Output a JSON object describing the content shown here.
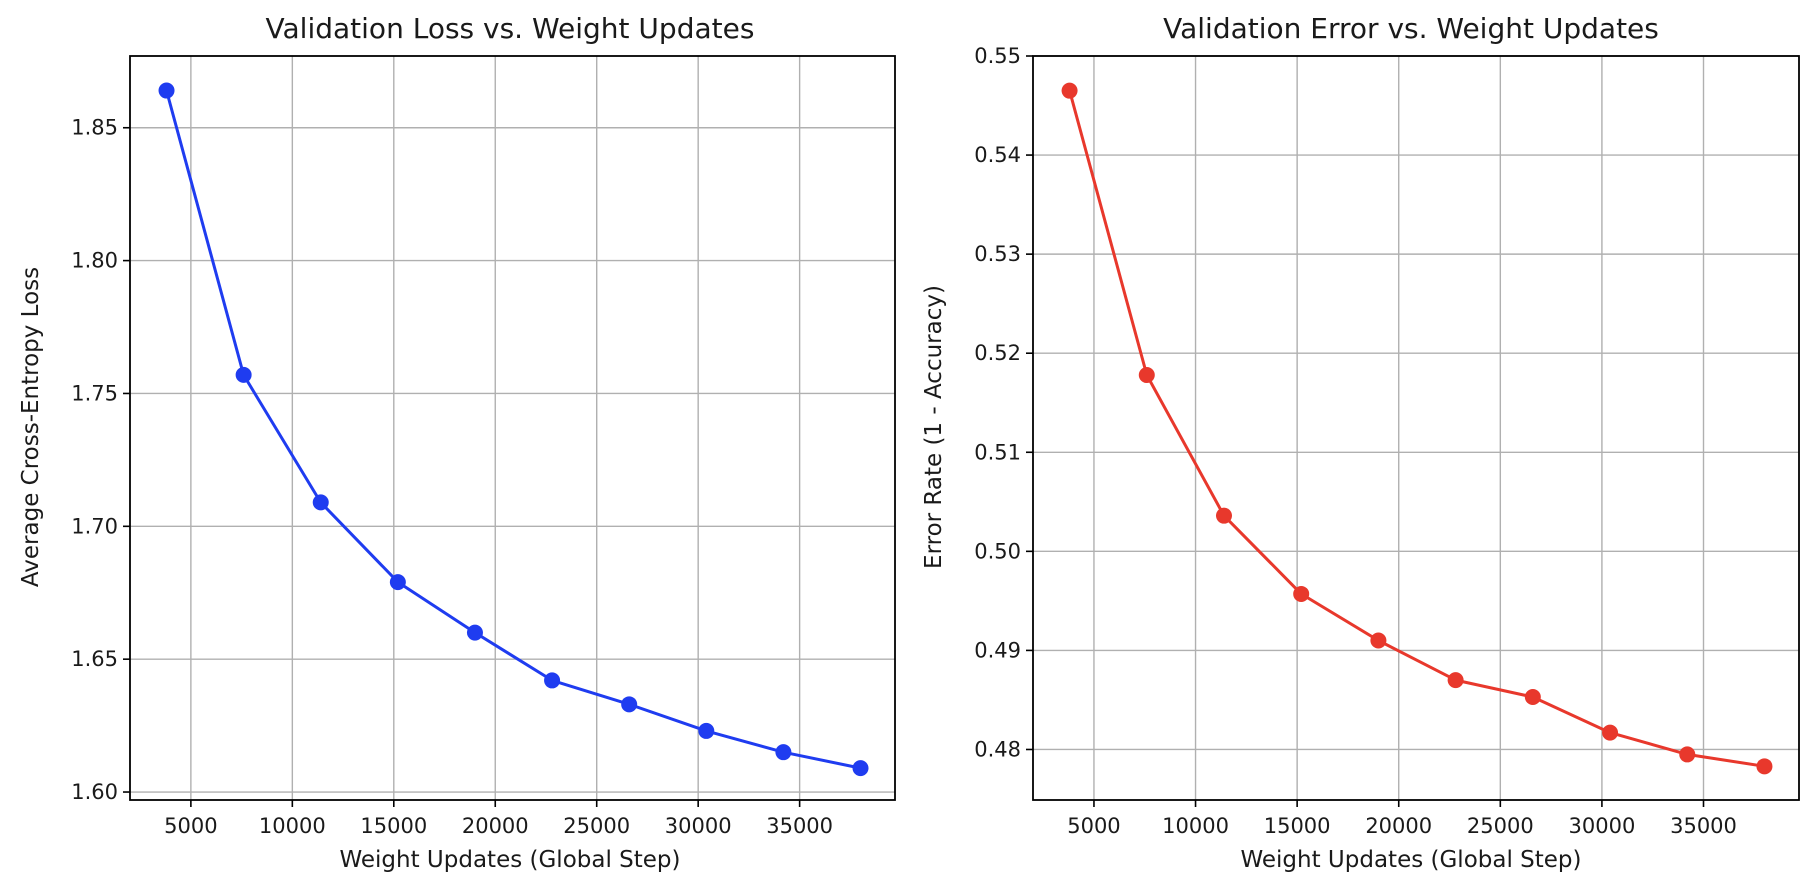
{
  "chart_data": [
    {
      "type": "line",
      "title": "Validation Loss vs. Weight Updates",
      "xlabel": "Weight Updates (Global Step)",
      "ylabel": "Average Cross-Entropy Loss",
      "xlim": [
        2000,
        39700
      ],
      "ylim": [
        1.597,
        1.877
      ],
      "xticks": [
        5000,
        10000,
        15000,
        20000,
        25000,
        30000,
        35000
      ],
      "xtick_labels": [
        "5000",
        "10000",
        "15000",
        "20000",
        "25000",
        "30000",
        "35000"
      ],
      "yticks": [
        1.6,
        1.65,
        1.7,
        1.75,
        1.8,
        1.85
      ],
      "ytick_labels": [
        "1.60",
        "1.65",
        "1.70",
        "1.75",
        "1.80",
        "1.85"
      ],
      "grid": true,
      "color": "#1f3cf0",
      "series": [
        {
          "x": [
            3800,
            7600,
            11400,
            15200,
            19000,
            22800,
            26600,
            30400,
            34200,
            38000
          ],
          "values": [
            1.864,
            1.757,
            1.709,
            1.679,
            1.66,
            1.642,
            1.633,
            1.623,
            1.615,
            1.609
          ]
        }
      ]
    },
    {
      "type": "line",
      "title": "Validation Error vs. Weight Updates",
      "xlabel": "Weight Updates (Global Step)",
      "ylabel": "Error Rate (1 - Accuracy)",
      "xlim": [
        2000,
        39700
      ],
      "ylim": [
        0.4749,
        0.55
      ],
      "xticks": [
        5000,
        10000,
        15000,
        20000,
        25000,
        30000,
        35000
      ],
      "xtick_labels": [
        "5000",
        "10000",
        "15000",
        "20000",
        "25000",
        "30000",
        "35000"
      ],
      "yticks": [
        0.48,
        0.49,
        0.5,
        0.51,
        0.52,
        0.53,
        0.54,
        0.55
      ],
      "ytick_labels": [
        "0.48",
        "0.49",
        "0.50",
        "0.51",
        "0.52",
        "0.53",
        "0.54",
        "0.55"
      ],
      "grid": true,
      "color": "#e8382c",
      "series": [
        {
          "x": [
            3800,
            7600,
            11400,
            15200,
            19000,
            22800,
            26600,
            30400,
            34200,
            38000
          ],
          "values": [
            0.5465,
            0.5178,
            0.5036,
            0.4957,
            0.491,
            0.487,
            0.4853,
            0.4817,
            0.4795,
            0.4783
          ]
        }
      ]
    }
  ]
}
